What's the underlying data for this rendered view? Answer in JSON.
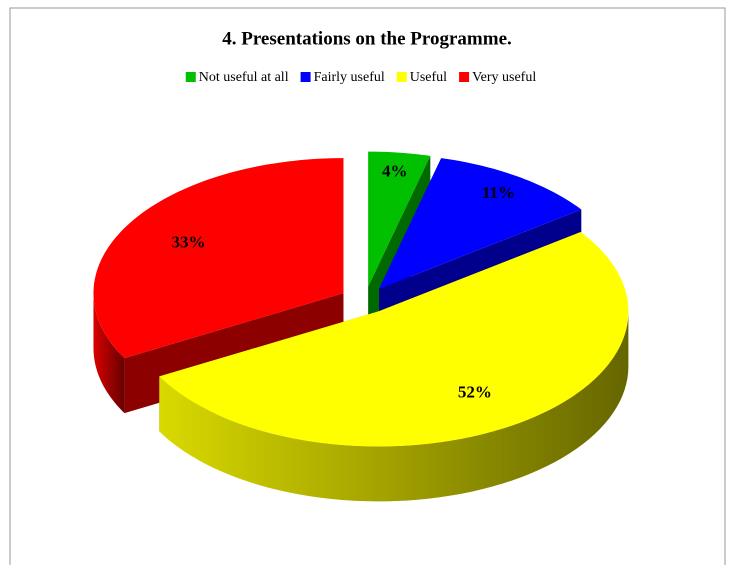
{
  "chart_data": {
    "type": "pie3d",
    "title": "4. Presentations on the Programme.",
    "categories": [
      "Not useful at all",
      "Fairly useful",
      "Useful",
      "Very useful"
    ],
    "values": [
      4,
      11,
      52,
      33
    ],
    "value_labels": [
      "4%",
      "11%",
      "52%",
      "33%"
    ],
    "colors": [
      "#00c000",
      "#0000ff",
      "#ffff00",
      "#ff0000"
    ],
    "legend": "top"
  }
}
